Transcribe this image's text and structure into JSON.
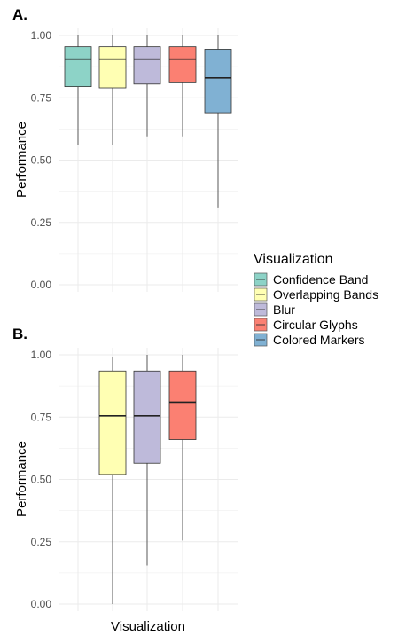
{
  "chart_data": [
    {
      "type": "box",
      "panel_label": "A.",
      "ylabel": "Performance",
      "xlabel": "",
      "ylim": [
        0,
        1
      ],
      "y_ticks": [
        "0.00",
        "0.25",
        "0.50",
        "0.75",
        "1.00"
      ],
      "grid": true,
      "boxes": [
        {
          "group": "Confidence Band",
          "min": 0.56,
          "q1": 0.795,
          "median": 0.905,
          "q3": 0.955,
          "max": 1.0
        },
        {
          "group": "Overlapping Bands",
          "min": 0.56,
          "q1": 0.79,
          "median": 0.905,
          "q3": 0.955,
          "max": 1.0
        },
        {
          "group": "Blur",
          "min": 0.595,
          "q1": 0.805,
          "median": 0.905,
          "q3": 0.955,
          "max": 1.0
        },
        {
          "group": "Circular Glyphs",
          "min": 0.595,
          "q1": 0.81,
          "median": 0.905,
          "q3": 0.955,
          "max": 1.0
        },
        {
          "group": "Colored Markers",
          "min": 0.31,
          "q1": 0.69,
          "median": 0.83,
          "q3": 0.945,
          "max": 1.0
        }
      ]
    },
    {
      "type": "box",
      "panel_label": "B.",
      "ylabel": "Performance",
      "xlabel": "Visualization",
      "ylim": [
        0,
        1
      ],
      "y_ticks": [
        "0.00",
        "0.25",
        "0.50",
        "0.75",
        "1.00"
      ],
      "grid": true,
      "boxes": [
        {
          "group": "Overlapping Bands",
          "min": 0.0,
          "q1": 0.52,
          "median": 0.755,
          "q3": 0.935,
          "max": 0.99
        },
        {
          "group": "Blur",
          "min": 0.155,
          "q1": 0.565,
          "median": 0.755,
          "q3": 0.935,
          "max": 1.0
        },
        {
          "group": "Circular Glyphs",
          "min": 0.255,
          "q1": 0.66,
          "median": 0.81,
          "q3": 0.935,
          "max": 1.0
        }
      ]
    }
  ],
  "legend": {
    "title": "Visualization",
    "placement": "right",
    "items": [
      {
        "label": "Confidence Band",
        "color": "#8dd3c7"
      },
      {
        "label": "Overlapping Bands",
        "color": "#ffffb3"
      },
      {
        "label": "Blur",
        "color": "#bebada"
      },
      {
        "label": "Circular Glyphs",
        "color": "#fb8072"
      },
      {
        "label": "Colored Markers",
        "color": "#80b1d3"
      }
    ]
  },
  "colors": {
    "Confidence Band": "#8dd3c7",
    "Overlapping Bands": "#ffffb3",
    "Blur": "#bebada",
    "Circular Glyphs": "#fb8072",
    "Colored Markers": "#80b1d3",
    "grid": "#ebebeb",
    "outline": "#333333"
  }
}
